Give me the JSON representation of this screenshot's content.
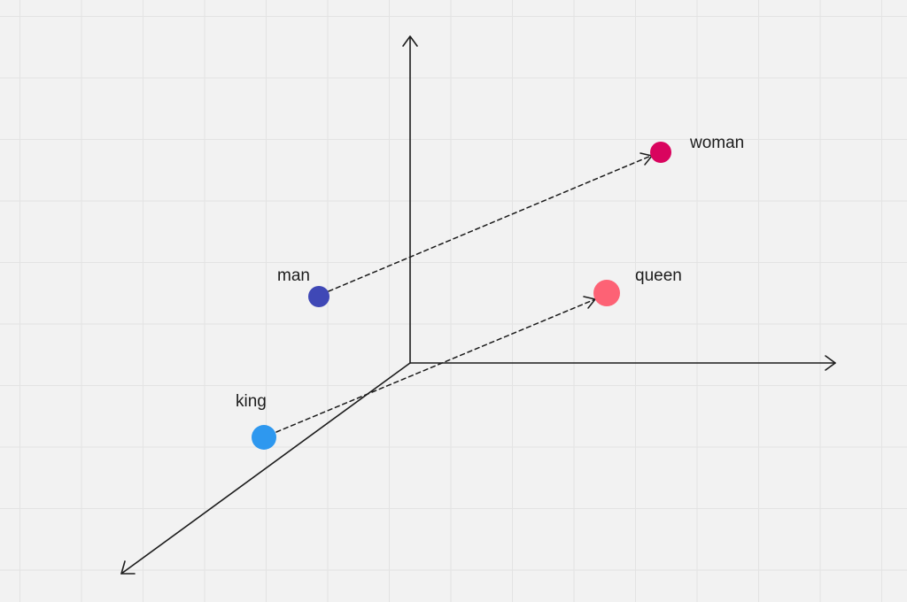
{
  "points": [
    {
      "id": "man",
      "label": "man",
      "color": "#3f48b6"
    },
    {
      "id": "woman",
      "label": "woman",
      "color": "#d9045e"
    },
    {
      "id": "king",
      "label": "king",
      "color": "#2e98ef"
    },
    {
      "id": "queen",
      "label": "queen",
      "color": "#fd6275"
    }
  ],
  "vectors": [
    {
      "from": "man",
      "to": "woman"
    },
    {
      "from": "king",
      "to": "queen"
    }
  ],
  "colors": {
    "axis": "#1c1c1c",
    "arrow": "#1c1c1c",
    "grid": "#e3e3e3",
    "background": "#f2f2f2"
  }
}
